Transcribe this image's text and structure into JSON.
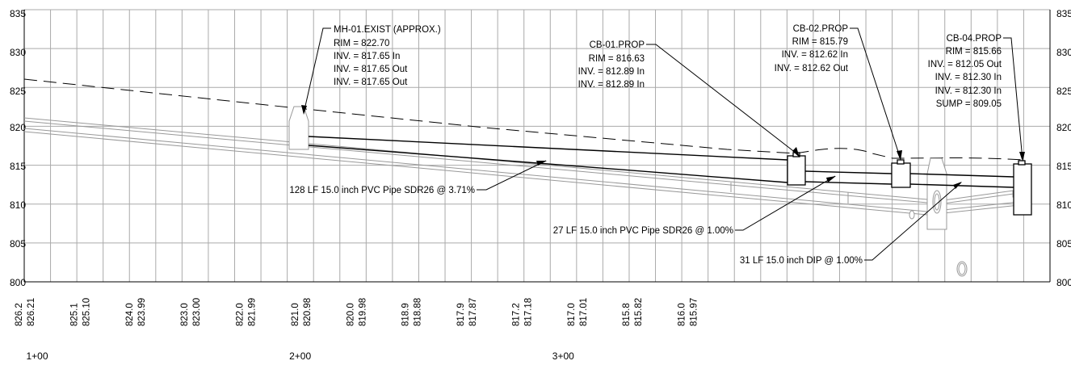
{
  "colors": {
    "grid": "#aaaaaa",
    "pipe": "#000000",
    "existing_pipe": "#999999",
    "background": "#ffffff"
  },
  "chart_data": {
    "type": "profile",
    "title": "",
    "xlim": [
      0,
      390
    ],
    "ylim": [
      800,
      835
    ],
    "grid": true,
    "elevation_ticks_left": [
      "835",
      "830",
      "825",
      "820",
      "815",
      "810",
      "805",
      "800"
    ],
    "elevation_ticks_right": [
      "835",
      "830",
      "825",
      "820",
      "815",
      "810",
      "805",
      "800"
    ],
    "station_labels": [
      {
        "value": 100,
        "text": "1+00"
      },
      {
        "value": 200,
        "text": "2+00"
      },
      {
        "value": 300,
        "text": "3+00"
      }
    ],
    "elevation_pairs": [
      {
        "station": 100,
        "top": "826.2",
        "bottom": "826.21"
      },
      {
        "station": 121,
        "top": "825.1",
        "bottom": "825.10"
      },
      {
        "station": 142,
        "top": "824.0",
        "bottom": "823.99"
      },
      {
        "station": 163,
        "top": "823.0",
        "bottom": "823.00"
      },
      {
        "station": 184,
        "top": "822.0",
        "bottom": "821.99"
      },
      {
        "station": 205,
        "top": "821.0",
        "bottom": "820.98"
      },
      {
        "station": 226,
        "top": "820.0",
        "bottom": "819.98"
      },
      {
        "station": 247,
        "top": "818.9",
        "bottom": "818.88"
      },
      {
        "station": 268,
        "top": "817.9",
        "bottom": "817.87"
      },
      {
        "station": 289,
        "top": "817.2",
        "bottom": "817.18"
      },
      {
        "station": 310,
        "top": "817.0",
        "bottom": "817.01"
      },
      {
        "station": 331,
        "top": "815.8",
        "bottom": "815.82"
      },
      {
        "station": 352,
        "top": "816.0",
        "bottom": "815.97"
      }
    ],
    "structures": [
      {
        "name": "MH-01.EXIST",
        "lines": [
          "MH-01.EXIST (APPROX.)",
          "RIM = 822.70",
          "INV. = 817.65 In",
          "INV. = 817.65 Out",
          "INV. = 817.65 Out"
        ]
      },
      {
        "name": "CB-01.PROP",
        "lines": [
          "CB-01.PROP",
          "RIM = 816.63",
          "INV. = 812.89 In",
          "INV. = 812.89 In"
        ]
      },
      {
        "name": "CB-02.PROP",
        "lines": [
          "CB-02.PROP",
          "RIM = 815.79",
          "INV. = 812.62 In",
          "INV. = 812.62 Out"
        ]
      },
      {
        "name": "CB-04.PROP",
        "lines": [
          "CB-04.PROP",
          "RIM = 815.66",
          "INV. = 812.05 Out",
          "INV. = 812.30 In",
          "INV. = 812.30 In",
          "SUMP = 809.05"
        ]
      }
    ],
    "pipes": [
      {
        "label": "128 LF 15.0 inch PVC Pipe SDR26 @ 3.71%",
        "length_lf": 128,
        "diameter_in": 15.0,
        "material": "PVC Pipe SDR26",
        "slope_pct": 3.71
      },
      {
        "label": "27 LF 15.0 inch PVC Pipe SDR26 @ 1.00%",
        "length_lf": 27,
        "diameter_in": 15.0,
        "material": "PVC Pipe SDR26",
        "slope_pct": 1.0
      },
      {
        "label": "31 LF 15.0 inch DIP @ 1.00%",
        "length_lf": 31,
        "diameter_in": 15.0,
        "material": "DIP",
        "slope_pct": 1.0
      }
    ]
  }
}
